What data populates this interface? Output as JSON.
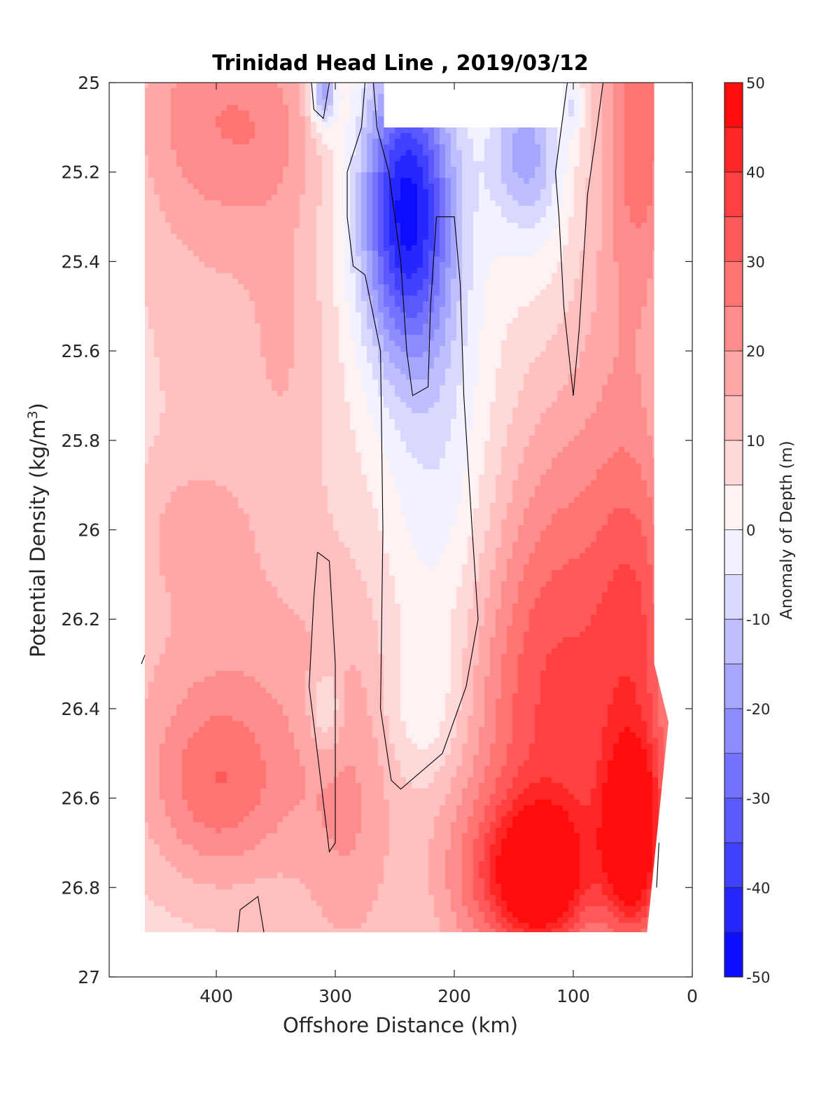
{
  "chart_data": {
    "type": "heatmap",
    "title": "Trinidad Head Line , 2019/03/12",
    "xlabel": "Offshore Distance (km)",
    "ylabel_main": "Potential Density (kg/m",
    "ylabel_sup": "3",
    "ylabel_close": ")",
    "colorbar_label": "Anomaly of Depth (m)",
    "x_reversed": true,
    "y_reversed": true,
    "xlim": [
      0,
      490
    ],
    "ylim": [
      25,
      27
    ],
    "x_ticks": [
      400,
      300,
      200,
      100,
      0
    ],
    "x_tick_labels": [
      "400",
      "300",
      "200",
      "100",
      "0"
    ],
    "y_ticks": [
      25,
      25.2,
      25.4,
      25.6,
      25.8,
      26,
      26.2,
      26.4,
      26.6,
      26.8,
      27
    ],
    "y_tick_labels": [
      "25",
      "25.2",
      "25.4",
      "25.6",
      "25.8",
      "26",
      "26.2",
      "26.4",
      "26.6",
      "26.8",
      "27"
    ],
    "colorbar_range": [
      -50,
      50
    ],
    "colorbar_ticks": [
      50,
      40,
      30,
      20,
      10,
      0,
      -10,
      -20,
      -30,
      -40,
      -50
    ],
    "colorbar_tick_labels": [
      "50",
      "40",
      "30",
      "20",
      "10",
      "0",
      "-10",
      "-20",
      "-30",
      "-40",
      "-50"
    ],
    "contour_levels": [
      -50,
      -45,
      -40,
      -35,
      -30,
      -25,
      -20,
      -15,
      -10,
      -5,
      0,
      5,
      10,
      15,
      20,
      25,
      30,
      35,
      40,
      45,
      50
    ],
    "colormap": {
      "negative": "#0000ff",
      "zero": "#ffffff",
      "positive": "#ff0000"
    },
    "data_extent": {
      "x": [
        20,
        460
      ],
      "y": [
        25,
        26.9
      ]
    },
    "grid": false,
    "features": [
      {
        "x": 410,
        "y": 25.05,
        "sx": 45,
        "sy": 0.2,
        "value": 14
      },
      {
        "x": 350,
        "y": 25.1,
        "sx": 30,
        "sy": 0.15,
        "value": 8
      },
      {
        "x": 400,
        "y": 25.45,
        "sx": 55,
        "sy": 0.35,
        "value": 6
      },
      {
        "x": 340,
        "y": 25.6,
        "sx": 25,
        "sy": 0.25,
        "value": 6
      },
      {
        "x": 420,
        "y": 26.0,
        "sx": 30,
        "sy": 0.1,
        "value": 7
      },
      {
        "x": 380,
        "y": 26.4,
        "sx": 80,
        "sy": 0.3,
        "value": 12
      },
      {
        "x": 400,
        "y": 26.58,
        "sx": 40,
        "sy": 0.14,
        "value": 14
      },
      {
        "x": 300,
        "y": 26.75,
        "sx": 30,
        "sy": 0.2,
        "value": 5
      },
      {
        "x": 280,
        "y": 26.6,
        "sx": 25,
        "sy": 0.3,
        "value": 6
      },
      {
        "x": 240,
        "y": 25.25,
        "sx": 28,
        "sy": 0.22,
        "value": -46
      },
      {
        "x": 240,
        "y": 25.5,
        "sx": 28,
        "sy": 0.2,
        "value": -10
      },
      {
        "x": 210,
        "y": 25.75,
        "sx": 35,
        "sy": 0.4,
        "value": -8
      },
      {
        "x": 215,
        "y": 26.05,
        "sx": 30,
        "sy": 0.25,
        "value": -4
      },
      {
        "x": 225,
        "y": 26.4,
        "sx": 25,
        "sy": 0.12,
        "value": -9
      },
      {
        "x": 140,
        "y": 25.15,
        "sx": 22,
        "sy": 0.12,
        "value": -22
      },
      {
        "x": 130,
        "y": 25.35,
        "sx": 25,
        "sy": 0.15,
        "value": -4
      },
      {
        "x": 310,
        "y": 25.02,
        "sx": 8,
        "sy": 0.06,
        "value": -26
      },
      {
        "x": 308,
        "y": 26.4,
        "sx": 10,
        "sy": 0.07,
        "value": -12
      },
      {
        "x": 100,
        "y": 25.05,
        "sx": 6,
        "sy": 0.05,
        "value": -10
      },
      {
        "x": 60,
        "y": 25.3,
        "sx": 25,
        "sy": 0.4,
        "value": 8
      },
      {
        "x": 40,
        "y": 25.05,
        "sx": 20,
        "sy": 0.3,
        "value": 18
      },
      {
        "x": 95,
        "y": 25.9,
        "sx": 45,
        "sy": 0.3,
        "value": 8
      },
      {
        "x": 120,
        "y": 26.25,
        "sx": 45,
        "sy": 0.3,
        "value": 14
      },
      {
        "x": 45,
        "y": 26.2,
        "sx": 25,
        "sy": 0.3,
        "value": 18
      },
      {
        "x": 130,
        "y": 26.78,
        "sx": 30,
        "sy": 0.12,
        "value": 42
      },
      {
        "x": 50,
        "y": 26.7,
        "sx": 18,
        "sy": 0.15,
        "value": 42
      },
      {
        "x": 110,
        "y": 26.55,
        "sx": 70,
        "sy": 0.3,
        "value": 18
      },
      {
        "x": 190,
        "y": 26.8,
        "sx": 25,
        "sy": 0.15,
        "value": 8
      }
    ],
    "zero_contours": [
      [
        [
          305,
          25.0
        ],
        [
          320,
          25.0
        ],
        [
          318,
          25.06
        ],
        [
          310,
          25.08
        ],
        [
          305,
          25.0
        ]
      ],
      [
        [
          275,
          25.0
        ],
        [
          278,
          25.1
        ],
        [
          290,
          25.2
        ],
        [
          290,
          25.3
        ],
        [
          285,
          25.41
        ],
        [
          275,
          25.43
        ],
        [
          262,
          25.6
        ],
        [
          260,
          26.0
        ],
        [
          262,
          26.4
        ],
        [
          253,
          26.56
        ],
        [
          245,
          26.58
        ],
        [
          210,
          26.5
        ],
        [
          190,
          26.35
        ],
        [
          180,
          26.2
        ],
        [
          185,
          26.0
        ],
        [
          192,
          25.7
        ],
        [
          195,
          25.45
        ],
        [
          200,
          25.3
        ],
        [
          215,
          25.3
        ],
        [
          220,
          25.5
        ],
        [
          222,
          25.68
        ],
        [
          235,
          25.7
        ],
        [
          240,
          25.6
        ],
        [
          245,
          25.4
        ],
        [
          255,
          25.2
        ],
        [
          265,
          25.1
        ],
        [
          268,
          25.0
        ]
      ],
      [
        [
          105,
          25.0
        ],
        [
          115,
          25.2
        ],
        [
          112,
          25.3
        ],
        [
          108,
          25.5
        ],
        [
          100,
          25.7
        ],
        [
          95,
          25.55
        ],
        [
          88,
          25.25
        ],
        [
          80,
          25.1
        ],
        [
          75,
          25.0
        ]
      ],
      [
        [
          315,
          26.05
        ],
        [
          305,
          26.07
        ],
        [
          300,
          26.3
        ],
        [
          300,
          26.7
        ],
        [
          305,
          26.72
        ],
        [
          315,
          26.5
        ],
        [
          322,
          26.35
        ],
        [
          318,
          26.15
        ],
        [
          315,
          26.05
        ]
      ],
      [
        [
          382,
          26.9
        ],
        [
          380,
          26.85
        ],
        [
          365,
          26.82
        ],
        [
          360,
          26.9
        ]
      ],
      [
        [
          28,
          26.7
        ],
        [
          30,
          26.8
        ]
      ],
      [
        [
          460,
          26.28
        ],
        [
          463,
          26.3
        ]
      ]
    ]
  }
}
